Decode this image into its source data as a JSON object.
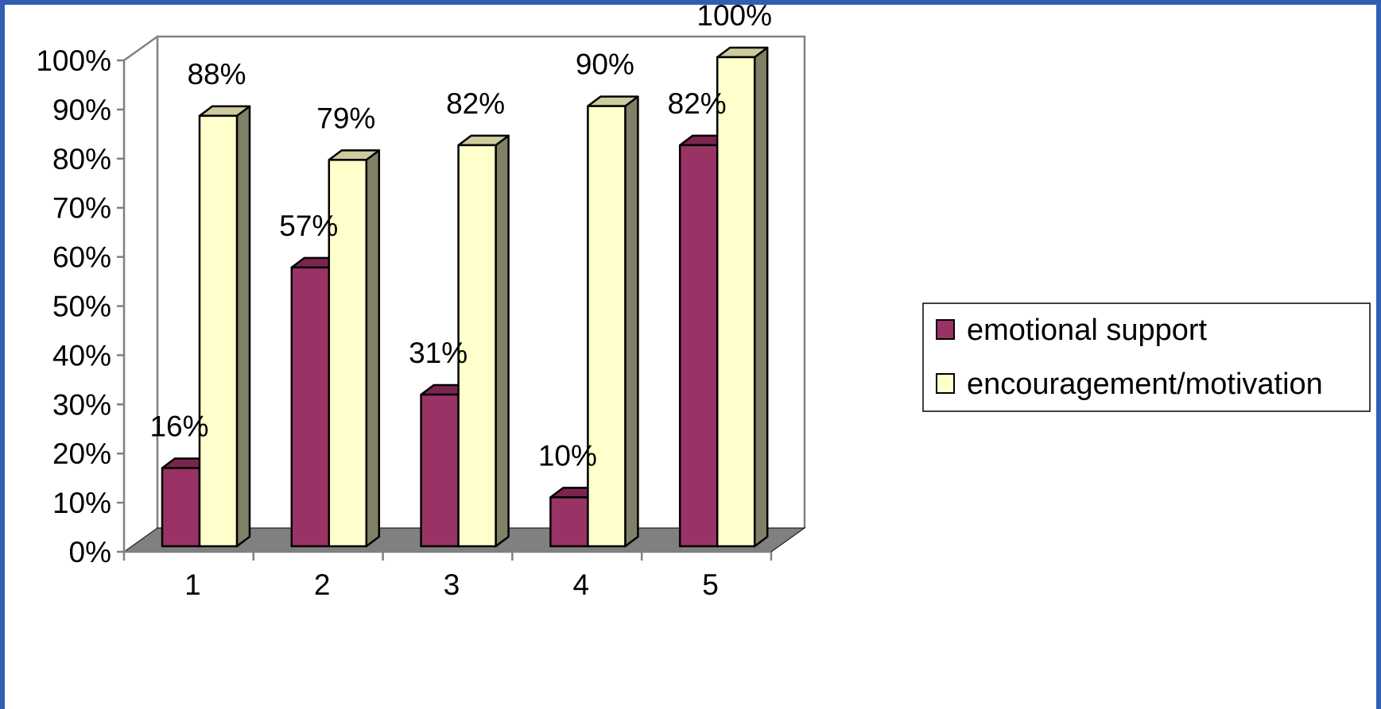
{
  "chart_data": {
    "type": "bar",
    "categories": [
      "1",
      "2",
      "3",
      "4",
      "5"
    ],
    "series": [
      {
        "name": "emotional support",
        "values": [
          16,
          57,
          31,
          10,
          82
        ],
        "labels": [
          "16%",
          "57%",
          "31%",
          "10%",
          "82%"
        ]
      },
      {
        "name": "encouragement/motivation",
        "values": [
          88,
          79,
          82,
          90,
          100
        ],
        "labels": [
          "88%",
          "79%",
          "82%",
          "90%",
          "100%"
        ]
      }
    ],
    "y_ticks": [
      "0%",
      "10%",
      "20%",
      "30%",
      "40%",
      "50%",
      "60%",
      "70%",
      "80%",
      "90%",
      "100%"
    ],
    "ylim": [
      0,
      100
    ],
    "title": "",
    "xlabel": "",
    "ylabel": "",
    "legend_position": "right",
    "grid": false,
    "colors": {
      "emotional_front": "#993366",
      "emotional_top": "#7a2550",
      "emotional_side": "#5e1c3e",
      "encourage_front": "#ffffcc",
      "encourage_top": "#cccc9e",
      "encourage_side": "#808066",
      "floor": "#808080",
      "background": "#2f5fb3"
    }
  }
}
